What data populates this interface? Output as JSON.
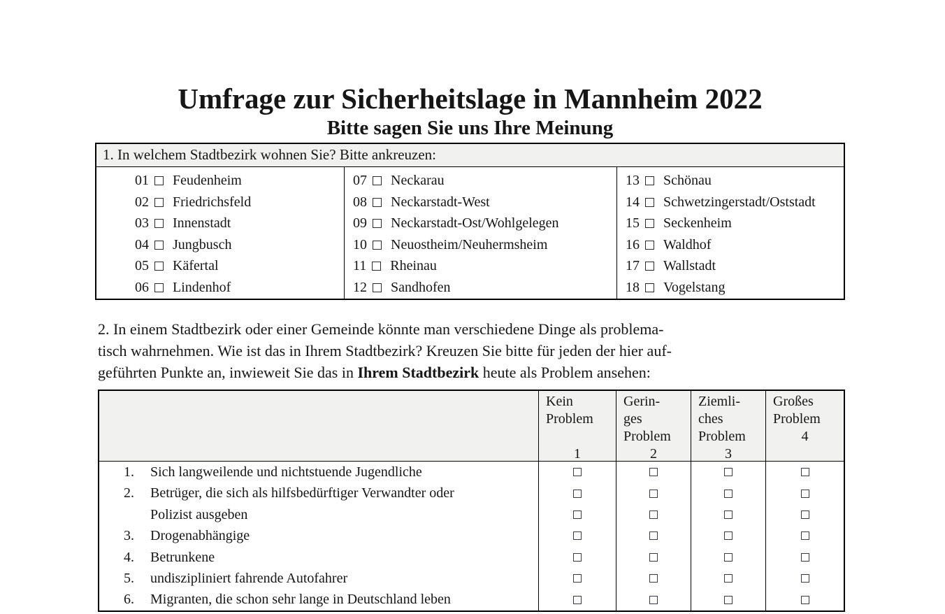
{
  "document": {
    "title": "Umfrage zur Sicherheitslage in Mannheim 2022",
    "subtitle": "Bitte sagen Sie uns Ihre Meinung"
  },
  "colors": {
    "header_bg": "#F1F1EF",
    "border": "#000000",
    "text": "#161616"
  },
  "question1": {
    "header": "1. In welchem Stadtbezirk wohnen Sie? Bitte ankreuzen:",
    "columns": [
      {
        "items": [
          {
            "num": "01",
            "label": "Feudenheim"
          },
          {
            "num": "02",
            "label": "Friedrichsfeld"
          },
          {
            "num": "03",
            "label": "Innenstadt"
          },
          {
            "num": "04",
            "label": "Jungbusch"
          },
          {
            "num": "05",
            "label": "Käfertal"
          },
          {
            "num": "06",
            "label": "Lindenhof"
          }
        ]
      },
      {
        "items": [
          {
            "num": "07",
            "label": "Neckarau"
          },
          {
            "num": "08",
            "label": "Neckarstadt-West"
          },
          {
            "num": "09",
            "label": "Neckarstadt-Ost/Wohlgelegen"
          },
          {
            "num": "10",
            "label": "Neuostheim/Neuhermsheim"
          },
          {
            "num": "11",
            "label": "Rheinau"
          },
          {
            "num": "12",
            "label": "Sandhofen"
          }
        ]
      },
      {
        "items": [
          {
            "num": "13",
            "label": "Schönau"
          },
          {
            "num": "14",
            "label": "Schwetzingerstadt/Oststadt"
          },
          {
            "num": "15",
            "label": "Seckenheim"
          },
          {
            "num": "16",
            "label": "Waldhof"
          },
          {
            "num": "17",
            "label": "Wallstadt"
          },
          {
            "num": "18",
            "label": "Vogelstang"
          }
        ]
      }
    ]
  },
  "question2": {
    "intro_lines": [
      "2. In einem Stadtbezirk oder einer Gemeinde könnte man verschiedene Dinge als problema-",
      "tisch wahrnehmen. Wie ist das in Ihrem Stadtbezirk? Kreuzen Sie bitte für jeden der hier auf-"
    ],
    "intro_line3_pre": "geführten Punkte an, inwieweit Sie das in ",
    "intro_line3_bold": "Ihrem Stadtbezirk",
    "intro_line3_post": " heute als Problem ansehen:",
    "table": {
      "col_headers": [
        {
          "lines": [
            "Kein",
            "Problem",
            "",
            "1"
          ]
        },
        {
          "lines": [
            "Gerin-",
            "ges",
            "Problem",
            "2"
          ]
        },
        {
          "lines": [
            "Ziemli-",
            "ches",
            "Problem",
            "3"
          ]
        },
        {
          "lines": [
            "Großes",
            "Problem",
            "4",
            ""
          ]
        }
      ],
      "rows": [
        {
          "num": "1.",
          "lines": [
            "Sich langweilende und nichtstuende Jugendliche"
          ]
        },
        {
          "num": "2.",
          "lines": [
            "Betrüger, die sich als hilfsbedürftiger Verwandter oder",
            "Polizist ausgeben"
          ]
        },
        {
          "num": "3.",
          "lines": [
            "Drogenabhängige"
          ]
        },
        {
          "num": "4.",
          "lines": [
            "Betrunkene"
          ]
        },
        {
          "num": "5.",
          "lines": [
            "undiszipliniert fahrende Autofahrer"
          ]
        },
        {
          "num": "6.",
          "lines": [
            "Migranten, die schon sehr lange in Deutschland leben"
          ]
        }
      ]
    }
  }
}
